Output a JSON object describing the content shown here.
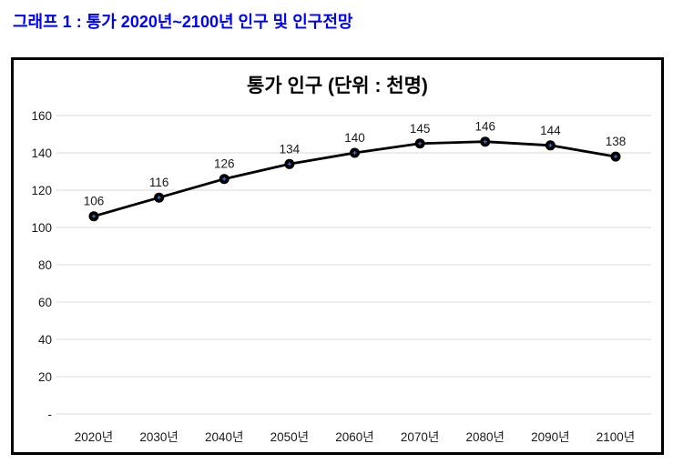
{
  "page": {
    "header_title": "그래프 1 : 통가 2020년~2100년 인구 및 인구전망",
    "header_color": "#0000ff"
  },
  "chart_data": {
    "type": "line",
    "title": "통가 인구 (단위 : 천명)",
    "categories": [
      "2020년",
      "2030년",
      "2040년",
      "2050년",
      "2060년",
      "2070년",
      "2080년",
      "2090년",
      "2100년"
    ],
    "values": [
      106,
      116,
      126,
      134,
      140,
      145,
      146,
      144,
      138
    ],
    "data_labels": [
      "106",
      "116",
      "126",
      "134",
      "140",
      "145",
      "146",
      "144",
      "138"
    ],
    "xlabel": "",
    "ylabel": "",
    "ylim": [
      0,
      160
    ],
    "ytick_step": 20,
    "ytick_labels": [
      "-",
      "20",
      "40",
      "60",
      "80",
      "100",
      "120",
      "140",
      "160"
    ],
    "grid": true,
    "legend_position": "none",
    "colors": {
      "line": "#000000",
      "marker_fill": "#000000",
      "marker_center": "#4472c4",
      "gridline": "#d9d9d9",
      "axis_line": "#d9d9d9",
      "label_text": "#1a1a1a",
      "frame_border": "#000000"
    }
  }
}
